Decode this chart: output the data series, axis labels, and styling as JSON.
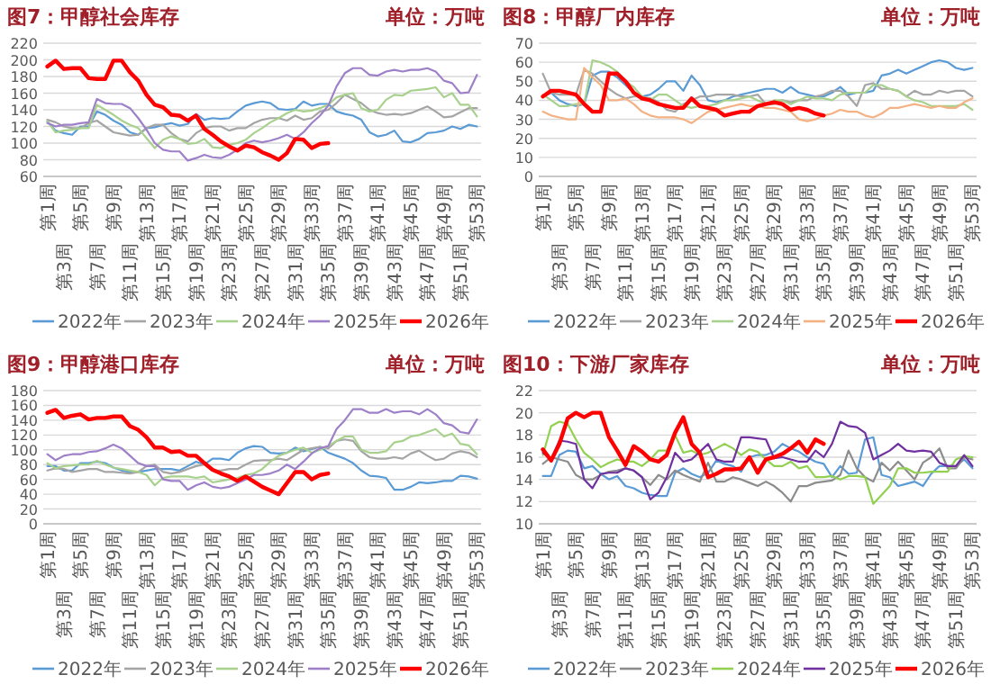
{
  "chart_data": [
    {
      "type": "line",
      "title": "图7：甲醇社会库存",
      "subtitle": "单位：万吨",
      "grid": "y",
      "legend": "bottom",
      "categories": [
        "第1周",
        null,
        "第3周",
        null,
        "第5周",
        null,
        "第7周",
        null,
        "第9周",
        null,
        "第11周",
        null,
        "第13周",
        null,
        "第15周",
        null,
        "第17周",
        null,
        "第19周",
        null,
        "第21周",
        null,
        "第23周",
        null,
        "第25周",
        null,
        "第27周",
        null,
        "第29周",
        null,
        "第31周",
        null,
        "第33周",
        null,
        "第35周",
        null,
        "第37周",
        null,
        "第39周",
        null,
        "第41周",
        null,
        "第43周",
        null,
        "第45周",
        null,
        "第47周",
        null,
        "第49周",
        null,
        "第51周",
        null,
        "第53周"
      ],
      "ylim": [
        60,
        220
      ],
      "yticks": [
        60,
        80,
        100,
        120,
        140,
        160,
        180,
        200,
        220
      ],
      "series": [
        {
          "name": "2022年",
          "color": "#5b9bd5",
          "values": [
            126,
            115,
            112,
            110,
            120,
            120,
            138,
            134,
            127,
            122,
            113,
            110,
            118,
            119,
            122,
            124,
            121,
            123,
            135,
            128,
            130,
            129,
            130,
            138,
            145,
            148,
            150,
            148,
            141,
            140,
            141,
            150,
            145,
            147,
            147,
            138,
            135,
            133,
            128,
            113,
            108,
            110,
            115,
            102,
            101,
            105,
            112,
            113,
            115,
            120,
            117,
            122,
            120
          ]
        },
        {
          "name": "2023年",
          "color": "#a5a5a5",
          "values": [
            128,
            125,
            120,
            118,
            118,
            124,
            127,
            120,
            113,
            111,
            109,
            110,
            118,
            122,
            122,
            112,
            105,
            102,
            112,
            118,
            120,
            120,
            115,
            118,
            118,
            124,
            128,
            130,
            130,
            127,
            133,
            128,
            130,
            138,
            140,
            148,
            158,
            153,
            148,
            140,
            136,
            134,
            135,
            134,
            136,
            140,
            144,
            138,
            131,
            132,
            137,
            142,
            142
          ]
        },
        {
          "name": "2024年",
          "color": "#a9d18e",
          "values": [
            126,
            113,
            115,
            116,
            118,
            118,
            146,
            140,
            134,
            127,
            122,
            118,
            106,
            94,
            104,
            108,
            105,
            99,
            100,
            105,
            95,
            94,
            98,
            100,
            104,
            112,
            118,
            125,
            130,
            136,
            140,
            138,
            139,
            142,
            146,
            155,
            158,
            160,
            142,
            138,
            140,
            152,
            158,
            157,
            163,
            164,
            165,
            167,
            155,
            160,
            146,
            146,
            132
          ]
        },
        {
          "name": "2025年",
          "color": "#9e80c9",
          "values": [
            124,
            120,
            122,
            122,
            124,
            125,
            153,
            148,
            147,
            147,
            142,
            130,
            116,
            100,
            92,
            90,
            90,
            79,
            82,
            86,
            83,
            82,
            86,
            92,
            100,
            103,
            101,
            103,
            106,
            110,
            105,
            113,
            124,
            133,
            145,
            168,
            184,
            190,
            190,
            182,
            181,
            186,
            188,
            186,
            188,
            188,
            190,
            186,
            175,
            172,
            160,
            161,
            182
          ]
        },
        {
          "name": "2026年",
          "color": "#ff0000",
          "values": [
            192,
            199,
            189,
            190,
            190,
            178,
            177,
            177,
            199,
            199,
            185,
            175,
            158,
            146,
            143,
            134,
            133,
            127,
            133,
            117,
            110,
            102,
            96,
            91,
            97,
            95,
            89,
            85,
            80,
            88,
            105,
            104,
            94,
            99,
            100,
            null,
            null,
            null,
            null,
            null,
            null,
            null,
            null,
            null,
            null,
            null,
            null,
            null,
            null,
            null,
            null,
            null,
            null
          ]
        }
      ]
    },
    {
      "type": "line",
      "title": "图8：甲醇厂内库存",
      "subtitle": "单位：万吨",
      "grid": "y",
      "legend": "bottom",
      "categories": [
        "第1周",
        null,
        "第3周",
        null,
        "第5周",
        null,
        "第7周",
        null,
        "第9周",
        null,
        "第11周",
        null,
        "第13周",
        null,
        "第15周",
        null,
        "第17周",
        null,
        "第19周",
        null,
        "第21周",
        null,
        "第23周",
        null,
        "第25周",
        null,
        "第27周",
        null,
        "第29周",
        null,
        "第31周",
        null,
        "第33周",
        null,
        "第35周",
        null,
        "第37周",
        null,
        "第39周",
        null,
        "第41周",
        null,
        "第43周",
        null,
        "第45周",
        null,
        "第47周",
        null,
        "第49周",
        null,
        "第51周",
        null,
        "第53周"
      ],
      "ylim": [
        0,
        70
      ],
      "yticks": [
        0,
        10,
        20,
        30,
        40,
        50,
        60,
        70
      ],
      "series": [
        {
          "name": "2022年",
          "color": "#5b9bd5",
          "values": [
            42,
            44,
            40,
            38,
            37,
            38,
            53,
            55,
            55,
            52,
            48,
            44,
            42,
            43,
            46,
            50,
            50,
            45,
            53,
            48,
            40,
            39,
            40,
            42,
            43,
            44,
            45,
            46,
            46,
            44,
            47,
            44,
            43,
            42,
            42,
            44,
            47,
            43,
            44,
            44,
            45,
            53,
            54,
            56,
            54,
            56,
            58,
            60,
            61,
            60,
            57,
            56,
            57
          ]
        },
        {
          "name": "2023年",
          "color": "#a5a5a5",
          "values": [
            54,
            44,
            43,
            43,
            43,
            56,
            54,
            50,
            46,
            43,
            41,
            42,
            42,
            41,
            39,
            35,
            34,
            38,
            40,
            42,
            42,
            43,
            43,
            43,
            42,
            42,
            43,
            38,
            38,
            40,
            39,
            40,
            40,
            42,
            43,
            45,
            45,
            42,
            37,
            48,
            49,
            46,
            46,
            45,
            42,
            45,
            43,
            43,
            45,
            44,
            45,
            45,
            42
          ]
        },
        {
          "name": "2024年",
          "color": "#a9d18e",
          "values": [
            43,
            40,
            37,
            37,
            38,
            38,
            61,
            60,
            58,
            55,
            50,
            47,
            42,
            40,
            43,
            43,
            40,
            37,
            36,
            37,
            37,
            38,
            40,
            40,
            41,
            42,
            40,
            38,
            40,
            40,
            38,
            40,
            42,
            41,
            41,
            40,
            43,
            44,
            44,
            44,
            48,
            48,
            46,
            45,
            42,
            40,
            39,
            37,
            37,
            37,
            37,
            38,
            35
          ]
        },
        {
          "name": "2025年",
          "color": "#f4b183",
          "values": [
            34,
            32,
            31,
            30,
            30,
            57,
            52,
            48,
            40,
            40,
            41,
            38,
            34,
            32,
            31,
            31,
            31,
            30,
            28,
            31,
            34,
            35,
            36,
            37,
            38,
            37,
            37,
            36,
            36,
            35,
            34,
            30,
            29,
            30,
            32,
            33,
            35,
            34,
            34,
            32,
            31,
            33,
            36,
            36,
            37,
            38,
            37,
            36,
            37,
            36,
            36,
            39,
            41
          ]
        },
        {
          "name": "2026年",
          "color": "#ff0000",
          "values": [
            42,
            45,
            45,
            44,
            43,
            38,
            34,
            34,
            54,
            54,
            50,
            44,
            41,
            40,
            38,
            37,
            36,
            36,
            41,
            37,
            36,
            35,
            32,
            33,
            34,
            34,
            37,
            38,
            39,
            38,
            35,
            36,
            35,
            33,
            32,
            null,
            null,
            null,
            null,
            null,
            null,
            null,
            null,
            null,
            null,
            null,
            null,
            null,
            null,
            null,
            null,
            null,
            null
          ]
        }
      ]
    },
    {
      "type": "line",
      "title": "图9：甲醇港口库存",
      "subtitle": "单位：万吨",
      "grid": "y",
      "legend": "bottom",
      "categories": [
        "第1周",
        null,
        "第3周",
        null,
        "第5周",
        null,
        "第7周",
        null,
        "第9周",
        null,
        "第11周",
        null,
        "第13周",
        null,
        "第15周",
        null,
        "第17周",
        null,
        "第19周",
        null,
        "第21周",
        null,
        "第23周",
        null,
        "第25周",
        null,
        "第27周",
        null,
        "第29周",
        null,
        "第31周",
        null,
        "第33周",
        null,
        "第35周",
        null,
        "第37周",
        null,
        "第39周",
        null,
        "第41周",
        null,
        "第43周",
        null,
        "第45周",
        null,
        "第47周",
        null,
        "第49周",
        null,
        "第51周",
        null,
        "第53周"
      ],
      "ylim": [
        0,
        180
      ],
      "yticks": [
        0,
        20,
        40,
        60,
        80,
        100,
        120,
        140,
        160,
        180
      ],
      "series": [
        {
          "name": "2022年",
          "color": "#5b9bd5",
          "values": [
            78,
            78,
            72,
            72,
            82,
            82,
            84,
            82,
            76,
            72,
            70,
            70,
            72,
            74,
            74,
            74,
            72,
            78,
            84,
            80,
            88,
            88,
            86,
            96,
            102,
            105,
            104,
            96,
            95,
            96,
            103,
            98,
            101,
            104,
            96,
            92,
            88,
            82,
            72,
            65,
            64,
            62,
            46,
            46,
            50,
            56,
            55,
            56,
            58,
            58,
            65,
            64,
            61
          ]
        },
        {
          "name": "2023年",
          "color": "#a5a5a5",
          "values": [
            72,
            75,
            74,
            70,
            72,
            74,
            74,
            70,
            70,
            69,
            68,
            70,
            78,
            80,
            70,
            68,
            70,
            74,
            78,
            80,
            72,
            72,
            74,
            74,
            80,
            85,
            86,
            86,
            88,
            86,
            93,
            100,
            102,
            104,
            102,
            112,
            114,
            112,
            98,
            90,
            88,
            88,
            90,
            88,
            95,
            99,
            92,
            86,
            88,
            95,
            98,
            96,
            90
          ]
        },
        {
          "name": "2024年",
          "color": "#a9d18e",
          "values": [
            82,
            75,
            78,
            79,
            80,
            80,
            85,
            80,
            76,
            74,
            72,
            70,
            66,
            52,
            62,
            64,
            64,
            64,
            62,
            64,
            56,
            58,
            60,
            62,
            66,
            68,
            74,
            84,
            92,
            96,
            100,
            103,
            96,
            100,
            105,
            112,
            118,
            118,
            100,
            96,
            96,
            98,
            110,
            112,
            118,
            120,
            124,
            128,
            118,
            122,
            108,
            106,
            94
          ]
        },
        {
          "name": "2025年",
          "color": "#9e80c9",
          "values": [
            94,
            86,
            92,
            94,
            94,
            97,
            98,
            102,
            107,
            102,
            92,
            82,
            78,
            78,
            60,
            58,
            58,
            46,
            52,
            56,
            50,
            48,
            50,
            55,
            60,
            66,
            66,
            68,
            72,
            80,
            74,
            84,
            95,
            102,
            105,
            128,
            140,
            155,
            155,
            150,
            150,
            155,
            150,
            152,
            152,
            148,
            155,
            148,
            136,
            133,
            124,
            122,
            141
          ]
        },
        {
          "name": "2026年",
          "color": "#ff0000",
          "values": [
            150,
            154,
            143,
            146,
            148,
            141,
            143,
            143,
            145,
            145,
            132,
            127,
            117,
            103,
            103,
            97,
            98,
            92,
            92,
            82,
            73,
            68,
            64,
            58,
            64,
            57,
            50,
            45,
            40,
            55,
            70,
            70,
            60,
            66,
            68,
            null,
            null,
            null,
            null,
            null,
            null,
            null,
            null,
            null,
            null,
            null,
            null,
            null,
            null,
            null,
            null,
            null,
            null
          ]
        }
      ]
    },
    {
      "type": "line",
      "title": "图10：下游厂家库存",
      "subtitle": "单位：万吨",
      "grid": "y",
      "legend": "bottom",
      "categories": [
        "第1周",
        null,
        "第3周",
        null,
        "第5周",
        null,
        "第7周",
        null,
        "第9周",
        null,
        "第11周",
        null,
        "第13周",
        null,
        "第15周",
        null,
        "第17周",
        null,
        "第19周",
        null,
        "第21周",
        null,
        "第23周",
        null,
        "第25周",
        null,
        "第27周",
        null,
        "第29周",
        null,
        "第31周",
        null,
        "第33周",
        null,
        "第35周",
        null,
        "第37周",
        null,
        "第39周",
        null,
        "第41周",
        null,
        "第43周",
        null,
        "第45周",
        null,
        "第47周",
        null,
        "第49周",
        null,
        "第51周",
        null,
        "第53周"
      ],
      "ylim": [
        10,
        22
      ],
      "yticks": [
        10,
        12,
        14,
        16,
        18,
        20,
        22
      ],
      "series": [
        {
          "name": "2022年",
          "color": "#5b9bd5",
          "values": [
            14.3,
            14.3,
            16.2,
            16.6,
            16.5,
            15.0,
            15.2,
            14.5,
            14.0,
            14.3,
            13.4,
            13.2,
            12.8,
            12.6,
            12.5,
            12.5,
            14.6,
            15.0,
            14.5,
            14.2,
            14.6,
            15.7,
            15.4,
            15.2,
            14.7,
            16.0,
            16.2,
            16.2,
            16.5,
            17.2,
            16.8,
            16.5,
            16.0,
            15.6,
            15.4,
            14.2,
            15.2,
            14.5,
            14.6,
            17.6,
            17.8,
            14.4,
            14.2,
            13.4,
            13.6,
            13.8,
            13.4,
            14.5,
            15.2,
            15.2,
            15.2,
            15.8,
            15.0
          ]
        },
        {
          "name": "2023年",
          "color": "#8c8c8c",
          "values": [
            15.4,
            16.0,
            15.8,
            15.6,
            14.4,
            14.0,
            14.0,
            14.4,
            14.7,
            14.8,
            15.0,
            14.8,
            14.2,
            13.5,
            14.4,
            14.0,
            14.8,
            14.4,
            14.1,
            13.8,
            15.5,
            13.8,
            13.8,
            14.2,
            14.0,
            13.7,
            13.4,
            13.8,
            13.4,
            12.8,
            12.0,
            13.4,
            13.4,
            13.7,
            13.8,
            13.9,
            14.4,
            16.6,
            15.0,
            14.2,
            13.8,
            15.5,
            14.8,
            15.6,
            14.8,
            14.0,
            15.5,
            16.0,
            16.8,
            15.0,
            15.0,
            16.0,
            15.8
          ]
        },
        {
          "name": "2024年",
          "color": "#92d050",
          "values": [
            16.2,
            18.8,
            19.2,
            19.0,
            17.6,
            16.4,
            15.8,
            15.1,
            15.5,
            15.8,
            15.6,
            15.6,
            15.2,
            15.8,
            16.6,
            16.6,
            18.0,
            16.4,
            16.6,
            16.2,
            16.4,
            16.8,
            17.2,
            16.8,
            16.2,
            16.7,
            16.5,
            15.8,
            15.2,
            15.2,
            15.6,
            15.0,
            15.2,
            14.2,
            14.2,
            14.3,
            14.0,
            14.3,
            14.3,
            14.2,
            11.8,
            12.6,
            13.4,
            15.0,
            15.0,
            14.6,
            14.6,
            14.7,
            14.7,
            14.7,
            15.8,
            16.1,
            16.0
          ]
        },
        {
          "name": "2025年",
          "color": "#7030a0",
          "values": [
            16.4,
            15.8,
            17.5,
            17.4,
            17.2,
            14.0,
            13.2,
            14.5,
            14.6,
            14.6,
            15.0,
            14.8,
            14.2,
            12.2,
            12.8,
            14.2,
            16.4,
            15.6,
            15.8,
            16.5,
            17.2,
            15.8,
            15.6,
            15.6,
            17.8,
            17.8,
            17.7,
            17.6,
            15.9,
            16.0,
            15.8,
            15.6,
            15.6,
            16.6,
            16.0,
            17.2,
            19.2,
            18.8,
            18.7,
            18.2,
            15.8,
            16.2,
            16.6,
            17.2,
            16.6,
            16.5,
            16.6,
            16.5,
            15.5,
            15.2,
            15.2,
            16.2,
            15.2
          ]
        },
        {
          "name": "2026年",
          "color": "#ff0000",
          "values": [
            16.7,
            15.7,
            17.2,
            19.5,
            20.0,
            19.6,
            20.0,
            20.0,
            17.8,
            16.6,
            15.3,
            17.0,
            16.5,
            15.8,
            15.6,
            16.2,
            18.2,
            19.6,
            17.2,
            16.4,
            14.2,
            14.5,
            14.9,
            14.9,
            15.0,
            16.0,
            14.6,
            15.8,
            16.0,
            16.3,
            16.8,
            17.4,
            16.4,
            17.6,
            17.2,
            null,
            null,
            null,
            null,
            null,
            null,
            null,
            null,
            null,
            null,
            null,
            null,
            null,
            null,
            null,
            null,
            null,
            null
          ]
        }
      ]
    }
  ]
}
